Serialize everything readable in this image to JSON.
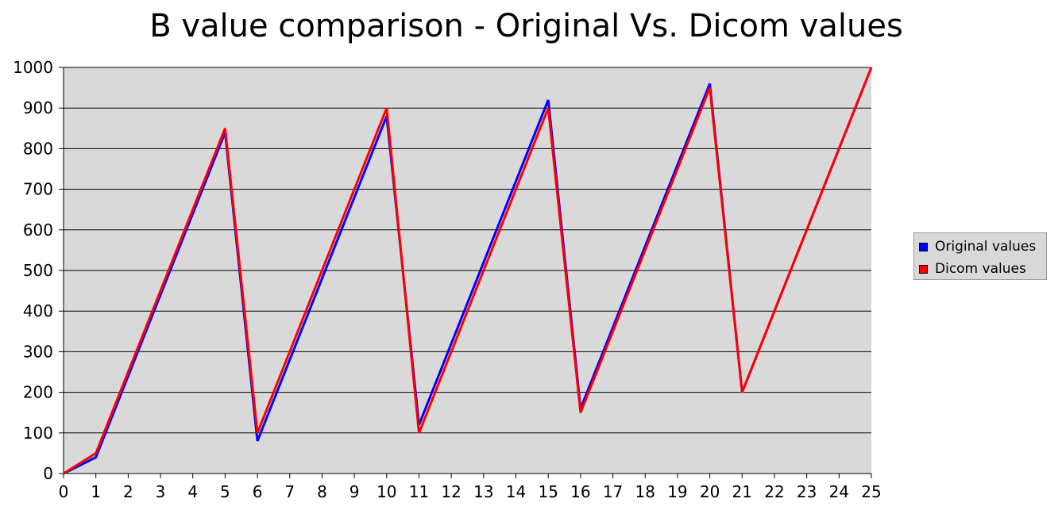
{
  "chart_data": {
    "type": "line",
    "title": "B value comparison - Original Vs. Dicom values",
    "xlabel": "",
    "ylabel": "",
    "x": [
      0,
      1,
      2,
      3,
      4,
      5,
      6,
      7,
      8,
      9,
      10,
      11,
      12,
      13,
      14,
      15,
      16,
      17,
      18,
      19,
      20,
      21,
      22,
      23,
      24,
      25
    ],
    "xlim": [
      0,
      25
    ],
    "ylim": [
      0,
      1000
    ],
    "yticks": [
      0,
      100,
      200,
      300,
      400,
      500,
      600,
      700,
      800,
      900,
      1000
    ],
    "grid": true,
    "legend_position": "right",
    "background": "#d9d9d9",
    "series": [
      {
        "name": "Original values",
        "color": "#0000ff",
        "points": [
          [
            0,
            0
          ],
          [
            1,
            40
          ],
          [
            5,
            840
          ],
          [
            6,
            80
          ],
          [
            10,
            880
          ],
          [
            11,
            120
          ],
          [
            15,
            920
          ],
          [
            16,
            160
          ],
          [
            20,
            960
          ],
          [
            21,
            200
          ],
          [
            25,
            1000
          ]
        ]
      },
      {
        "name": "Dicom values",
        "color": "#ff0000",
        "points": [
          [
            0,
            0
          ],
          [
            1,
            50
          ],
          [
            5,
            850
          ],
          [
            6,
            100
          ],
          [
            10,
            900
          ],
          [
            11,
            100
          ],
          [
            15,
            900
          ],
          [
            16,
            150
          ],
          [
            20,
            950
          ],
          [
            21,
            200
          ],
          [
            25,
            1000
          ]
        ]
      }
    ]
  }
}
